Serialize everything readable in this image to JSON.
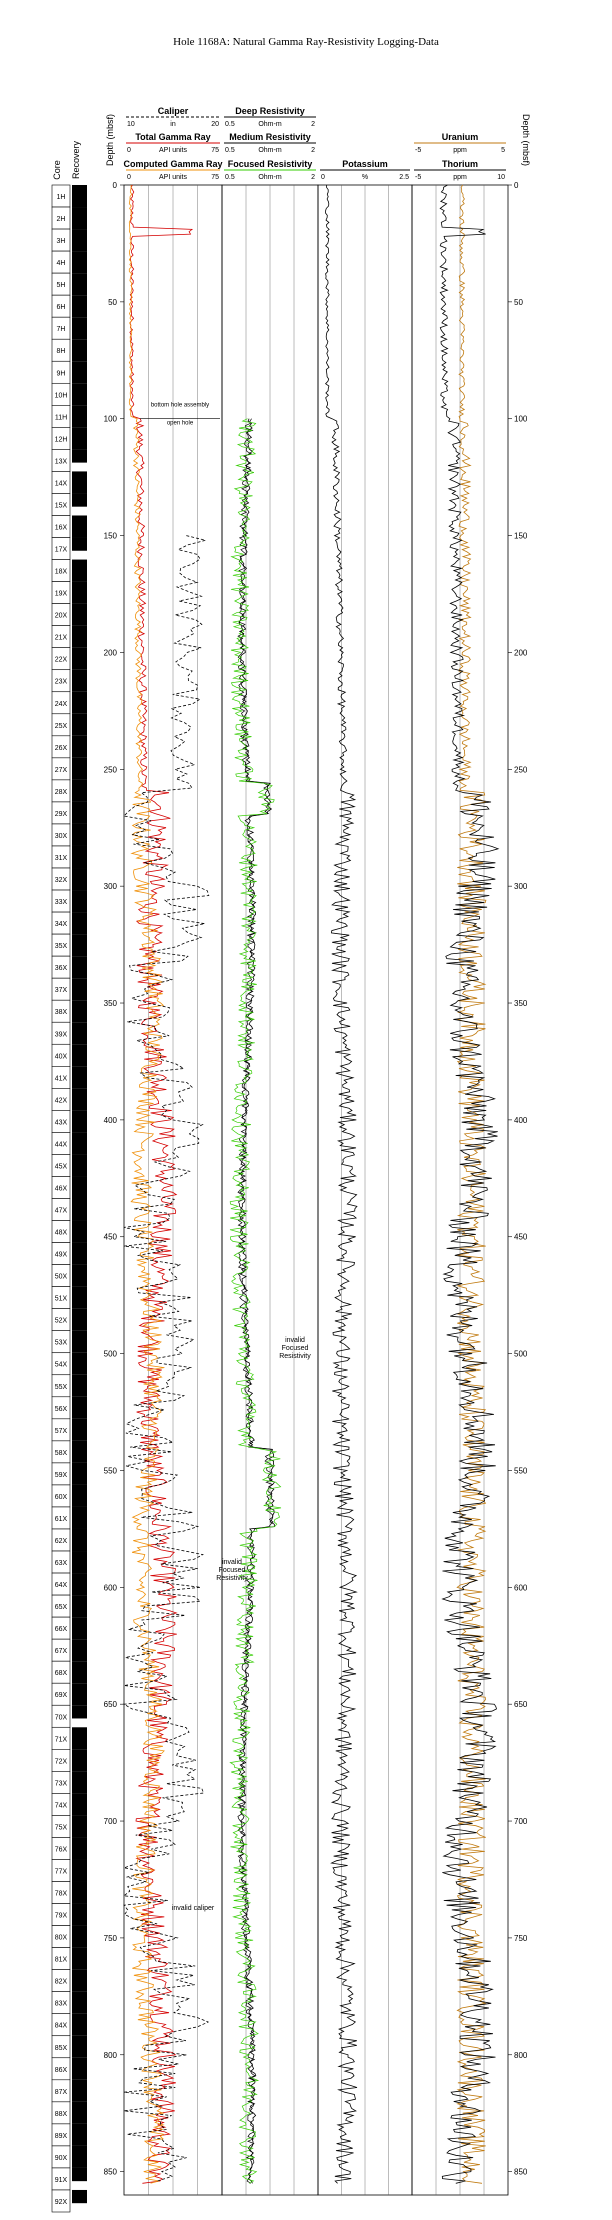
{
  "title": "Hole 1168A: Natural Gamma Ray-Resistivity Logging-Data",
  "colors": {
    "total_gamma": "#d40000",
    "computed_gamma": "#f0900a",
    "caliper": "#000000",
    "deep_resistivity": "#000000",
    "medium_resistivity": "#000000",
    "focused_resistivity": "#33cc00",
    "potassium": "#000000",
    "uranium": "#c07a10",
    "thorium": "#000000"
  },
  "chart_data": {
    "type": "line",
    "y_axis": {
      "label": "Depth (mbsf)",
      "range": [
        0,
        860
      ],
      "ticks": [
        0,
        50,
        100,
        150,
        200,
        250,
        300,
        350,
        400,
        450,
        500,
        550,
        600,
        650,
        700,
        750,
        800,
        850
      ]
    },
    "core_column": {
      "headers": [
        "Core",
        "Recovery"
      ],
      "cores": [
        "1H",
        "2H",
        "3H",
        "4H",
        "5H",
        "6H",
        "7H",
        "8H",
        "9H",
        "10H",
        "11H",
        "12H",
        "13X",
        "14X",
        "15X",
        "16X",
        "17X",
        "18X",
        "19X",
        "20X",
        "21X",
        "22X",
        "23X",
        "24X",
        "25X",
        "26X",
        "27X",
        "28X",
        "29X",
        "30X",
        "31X",
        "32X",
        "33X",
        "34X",
        "35X",
        "36X",
        "37X",
        "38X",
        "39X",
        "40X",
        "41X",
        "42X",
        "43X",
        "44X",
        "45X",
        "46X",
        "47X",
        "48X",
        "49X",
        "50X",
        "51X",
        "52X",
        "53X",
        "54X",
        "55X",
        "56X",
        "57X",
        "58X",
        "59X",
        "60X",
        "61X",
        "62X",
        "63X",
        "64X",
        "65X",
        "66X",
        "67X",
        "68X",
        "69X",
        "70X",
        "71X",
        "72X",
        "73X",
        "74X",
        "75X",
        "76X",
        "77X",
        "78X",
        "79X",
        "80X",
        "81X",
        "82X",
        "83X",
        "84X",
        "85X",
        "86X",
        "87X",
        "88X",
        "89X",
        "90X",
        "91X",
        "92X"
      ]
    },
    "tracks": [
      {
        "curves": [
          {
            "name": "Caliper",
            "unit": "in",
            "range": [
              10,
              20
            ],
            "style": "dashed"
          },
          {
            "name": "Total Gamma Ray",
            "unit": "API units",
            "range": [
              0,
              75
            ]
          },
          {
            "name": "Computed Gamma Ray",
            "unit": "API units",
            "range": [
              0,
              75
            ]
          }
        ]
      },
      {
        "curves": [
          {
            "name": "Deep Resistivity",
            "unit": "Ohm-m",
            "range": [
              0.5,
              2
            ]
          },
          {
            "name": "Medium Resistivity",
            "unit": "Ohm-m",
            "range": [
              0.5,
              2
            ]
          },
          {
            "name": "Focused Resistivity",
            "unit": "Ohm-m",
            "range": [
              0.5,
              2
            ]
          }
        ]
      },
      {
        "curves": [
          {
            "name": "Potassium",
            "unit": "%",
            "range": [
              0,
              2.5
            ]
          }
        ]
      },
      {
        "curves": [
          {
            "name": "Uranium",
            "unit": "ppm",
            "range": [
              -5,
              5
            ]
          },
          {
            "name": "Thorium",
            "unit": "ppm",
            "range": [
              -5,
              10
            ]
          }
        ]
      }
    ],
    "annotations": {
      "bottom_hole_assembly": "bottom hole assembly",
      "open_hole": "open hole",
      "invalid_focused_1": [
        "invalid",
        "Focused",
        "Resistivity"
      ],
      "invalid_focused_2": [
        "invalid",
        "Focused",
        "Resistivity"
      ],
      "invalid_caliper": "invalid caliper"
    },
    "bha_depth": 100,
    "tick_labels": {
      "caliper": [
        "10",
        "in",
        "20"
      ],
      "deep": [
        "0.5",
        "Ohm-m",
        "2"
      ],
      "total": [
        "0",
        "API units",
        "75"
      ],
      "medium": [
        "0.5",
        "Ohm-m",
        "2"
      ],
      "computed": [
        "0",
        "API units",
        "75"
      ],
      "focused": [
        "0.5",
        "Ohm-m",
        "2"
      ],
      "potassium": [
        "0",
        "%",
        "2.5"
      ],
      "uranium": [
        "-5",
        "ppm",
        "5"
      ],
      "thorium": [
        "-5",
        "ppm",
        "10"
      ]
    }
  }
}
